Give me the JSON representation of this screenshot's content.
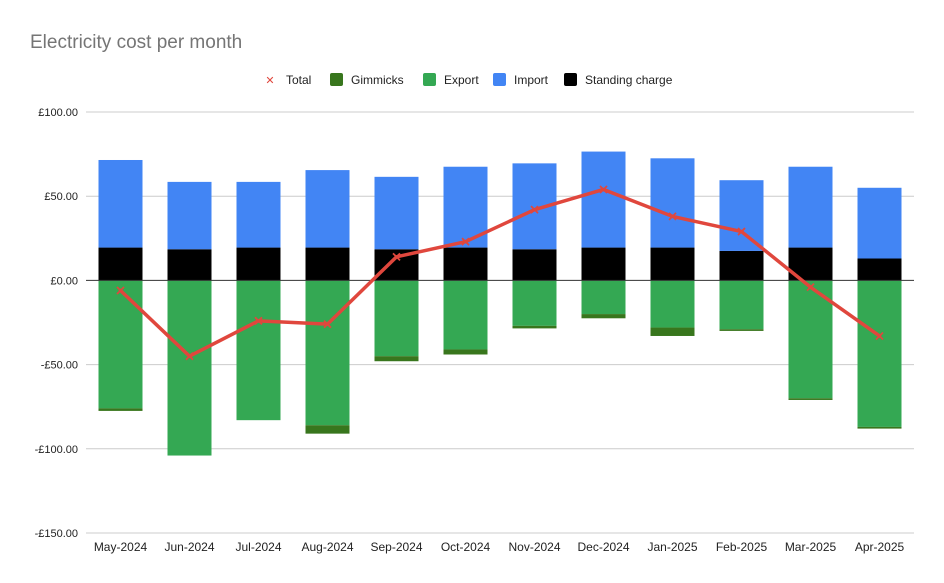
{
  "chart_data": {
    "type": "bar",
    "stacked": true,
    "title": "Electricity cost per month",
    "legend_position": "top",
    "grid": true,
    "ylim": [
      -150,
      100
    ],
    "y_ticks": [
      100,
      50,
      0,
      -50,
      -100,
      -150
    ],
    "y_tick_labels": [
      "£100.00",
      "£50.00",
      "£0.00",
      "-£50.00",
      "-£100.00",
      "-£150.00"
    ],
    "categories": [
      "May-2024",
      "Jun-2024",
      "Jul-2024",
      "Aug-2024",
      "Sep-2024",
      "Oct-2024",
      "Nov-2024",
      "Dec-2024",
      "Jan-2025",
      "Feb-2025",
      "Mar-2025",
      "Apr-2025"
    ],
    "series": [
      {
        "name": "Total",
        "type": "line",
        "color": "#e0473d",
        "values": [
          -6,
          -45,
          -24,
          -26,
          14,
          23,
          42,
          54,
          38,
          29,
          -4,
          -33
        ]
      },
      {
        "name": "Gimmicks",
        "type": "bar",
        "color": "#38761d",
        "values": [
          -1.5,
          0,
          0,
          -5,
          -3,
          -3,
          -1.5,
          -2.5,
          -5,
          -1,
          -1,
          -1
        ]
      },
      {
        "name": "Export",
        "type": "bar",
        "color": "#34a853",
        "values": [
          -76,
          -104,
          -83,
          -86,
          -45,
          -41,
          -27,
          -20,
          -28,
          -29,
          -70,
          -87
        ]
      },
      {
        "name": "Import",
        "type": "bar",
        "color": "#4285f4",
        "values": [
          52,
          40,
          39,
          46,
          43,
          48,
          51,
          57,
          53,
          42,
          48,
          42
        ]
      },
      {
        "name": "Standing charge",
        "type": "bar",
        "color": "#000000",
        "values": [
          19.5,
          18.5,
          19.5,
          19.5,
          18.5,
          19.5,
          18.5,
          19.5,
          19.5,
          17.5,
          19.5,
          13
        ]
      }
    ]
  }
}
